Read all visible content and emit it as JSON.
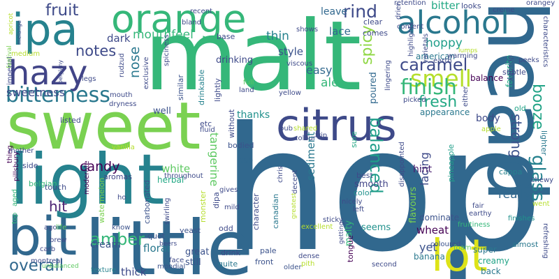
{
  "cloud": {
    "words": [
      {
        "text": "hop",
        "color": "#31688e"
      },
      {
        "text": "malt",
        "color": "#35b779"
      },
      {
        "text": "head",
        "color": "#31688e"
      },
      {
        "text": "sweet",
        "color": "#7ad151"
      },
      {
        "text": "light",
        "color": "#26828e"
      },
      {
        "text": "little",
        "color": "#31688e"
      },
      {
        "text": "citrus",
        "color": "#3e4a89"
      },
      {
        "text": "orange",
        "color": "#35b779"
      },
      {
        "text": "lot",
        "color": "#dde318"
      },
      {
        "text": "ipa",
        "color": "#26828e"
      },
      {
        "text": "bit",
        "color": "#31688e"
      },
      {
        "text": "hazy",
        "color": "#414487"
      },
      {
        "text": "alcohol",
        "color": "#2a788e"
      },
      {
        "text": "bitterness",
        "color": "#2a788e"
      },
      {
        "text": "smell",
        "color": "#b5de2b"
      },
      {
        "text": "finish",
        "color": "#35b779"
      },
      {
        "text": "amber",
        "color": "#35b779"
      },
      {
        "text": "glass",
        "color": "#26828e"
      },
      {
        "text": "caramel",
        "color": "#3e4a89"
      },
      {
        "text": "rind",
        "color": "#3e4a89"
      },
      {
        "text": "balanced",
        "color": "#1f9e89"
      },
      {
        "text": "booze",
        "color": "#20a386"
      },
      {
        "text": "fresh",
        "color": "#22a884"
      },
      {
        "text": "spicy",
        "color": "#8fd744"
      },
      {
        "text": "strong",
        "color": "#3b528b"
      },
      {
        "text": "overall",
        "color": "#31688e"
      },
      {
        "text": "fruit",
        "color": "#3e4a89"
      },
      {
        "text": "notes",
        "color": "#3e4a89"
      },
      {
        "text": "candy",
        "color": "#440154"
      },
      {
        "text": "hit",
        "color": "#481f70"
      },
      {
        "text": "nose",
        "color": "#2a788e"
      },
      {
        "text": "sweetness",
        "color": "#3e4a89"
      },
      {
        "text": "mouthfeel",
        "color": "#35b779"
      },
      {
        "text": "thin",
        "color": "#26828e"
      },
      {
        "text": "ale",
        "color": "#35b779"
      },
      {
        "text": "hoppy",
        "color": "#1f9e89"
      },
      {
        "text": "dark",
        "color": "#3e4a89"
      },
      {
        "text": "lace",
        "color": "#31688e"
      },
      {
        "text": "easy",
        "color": "#31688e"
      },
      {
        "text": "style",
        "color": "#3b528b"
      },
      {
        "text": "bitter",
        "color": "#22a884"
      },
      {
        "text": "leave",
        "color": "#31688e"
      },
      {
        "text": "really",
        "color": "#31688e"
      },
      {
        "text": "yet",
        "color": "#3b528b"
      },
      {
        "text": "wheat",
        "color": "#440154"
      },
      {
        "text": "thick",
        "color": "#3e4a89"
      },
      {
        "text": "floral",
        "color": "#2a788e"
      },
      {
        "text": "white",
        "color": "#5ec962"
      },
      {
        "text": "body",
        "color": "#3e4a89"
      },
      {
        "text": "lacing",
        "color": "#3e4a89"
      },
      {
        "text": "tangerine",
        "color": "#5ec962"
      },
      {
        "text": "sediment",
        "color": "#2a788e"
      },
      {
        "text": "smooth",
        "color": "#414487"
      },
      {
        "text": "hint",
        "color": "#481f70"
      },
      {
        "text": "thanks",
        "color": "#21918c"
      },
      {
        "text": "cream",
        "color": "#3b528b"
      },
      {
        "text": "great",
        "color": "#3b528b"
      },
      {
        "text": "still",
        "color": "#3b528b"
      },
      {
        "text": "well",
        "color": "#3b528b"
      },
      {
        "text": "drinking",
        "color": "#3e4a89"
      },
      {
        "text": "poured",
        "color": "#31688e"
      },
      {
        "text": "malty",
        "color": "#35b779"
      },
      {
        "text": "flavours",
        "color": "#7ad151"
      },
      {
        "text": "dominate",
        "color": "#3b528b"
      },
      {
        "text": "seems",
        "color": "#21918c"
      },
      {
        "text": "creamy",
        "color": "#20a386"
      },
      {
        "text": "super",
        "color": "#2a788e"
      },
      {
        "text": "banana",
        "color": "#2a788e"
      },
      {
        "text": "favorite",
        "color": "#22a884"
      },
      {
        "text": "balance",
        "color": "#440154"
      },
      {
        "text": "appearance",
        "color": "#2a788e"
      },
      {
        "text": "american",
        "color": "#2a788e"
      },
      {
        "text": "clear",
        "color": "#3e4a89"
      },
      {
        "text": "comes",
        "color": "#3e4a89"
      },
      {
        "text": "lighter",
        "color": "#2a788e"
      },
      {
        "text": "almost",
        "color": "#2a788e"
      },
      {
        "text": "herbal",
        "color": "#22a884"
      },
      {
        "text": "aromas",
        "color": "#414487"
      },
      {
        "text": "belgian",
        "color": "#35b779"
      },
      {
        "text": "side",
        "color": "#3e4a89"
      },
      {
        "text": "touch",
        "color": "#3e4a89"
      },
      {
        "text": "quot",
        "color": "#3b528b"
      },
      {
        "text": "yeast",
        "color": "#3b528b"
      },
      {
        "text": "odd",
        "color": "#3e4a89"
      },
      {
        "text": "drink",
        "color": "#3e4a89"
      },
      {
        "text": "pale",
        "color": "#3b528b"
      },
      {
        "text": "front",
        "color": "#3b528b"
      },
      {
        "text": "quite",
        "color": "#2a788e"
      },
      {
        "text": "best",
        "color": "#3e4a89"
      },
      {
        "text": "color",
        "color": "#21918c"
      },
      {
        "text": "tap",
        "color": "#31688e"
      },
      {
        "text": "sure",
        "color": "#22a884"
      },
      {
        "text": "bodied",
        "color": "#3b528b"
      },
      {
        "text": "drinkable",
        "color": "#26828e"
      },
      {
        "text": "carbonated",
        "color": "#3b528b"
      },
      {
        "text": "watermelon",
        "color": "#7ad151"
      },
      {
        "text": "monster",
        "color": "#b5de2b"
      },
      {
        "text": "dipa",
        "color": "#3e4a89"
      },
      {
        "text": "canadian",
        "color": "#2a788e"
      },
      {
        "text": "cappa",
        "color": "#26828e"
      },
      {
        "text": "pineapple",
        "color": "#1f9e89"
      },
      {
        "text": "tongue",
        "color": "#440154"
      },
      {
        "text": "character",
        "color": "#3e4a89"
      },
      {
        "text": "base",
        "color": "#3e4a89"
      },
      {
        "text": "lightly",
        "color": "#3e4a89"
      },
      {
        "text": "similar",
        "color": "#3b528b"
      },
      {
        "text": "listed",
        "color": "#3e4a89"
      },
      {
        "text": "etc",
        "color": "#3e4a89"
      },
      {
        "text": "without",
        "color": "#3e4a89"
      },
      {
        "text": "old",
        "color": "#20a386"
      },
      {
        "text": "top",
        "color": "#35b779"
      },
      {
        "text": "imperial",
        "color": "#3e4a89"
      },
      {
        "text": "medium",
        "color": "#b5de2b"
      },
      {
        "text": "thing",
        "color": "#440154"
      },
      {
        "text": "aged",
        "color": "#35b779"
      },
      {
        "text": "chewy",
        "color": "#3e4a89"
      },
      {
        "text": "fair",
        "color": "#3e4a89"
      },
      {
        "text": "earthy",
        "color": "#3e4a89"
      },
      {
        "text": "finishes",
        "color": "#21918c"
      },
      {
        "text": "went",
        "color": "#b5de2b"
      },
      {
        "text": "refreshing",
        "color": "#3e4a89"
      },
      {
        "text": "fruitiness",
        "color": "#35b779"
      },
      {
        "text": "foam",
        "color": "#5ec962"
      },
      {
        "text": "back",
        "color": "#2a788e"
      },
      {
        "text": "coloured",
        "color": "#3b528b"
      },
      {
        "text": "second",
        "color": "#3e4a89"
      },
      {
        "text": "dense",
        "color": "#3e4a89"
      },
      {
        "text": "pith",
        "color": "#b5de2b"
      },
      {
        "text": "older",
        "color": "#3b528b"
      },
      {
        "text": "mondial",
        "color": "#3b528b"
      },
      {
        "text": "face",
        "color": "#3e4a89"
      },
      {
        "text": "texture",
        "color": "#26828e"
      },
      {
        "text": "montreal",
        "color": "#3e4a89"
      },
      {
        "text": "carb",
        "color": "#3e4a89"
      },
      {
        "text": "ago",
        "color": "#3e4a89"
      },
      {
        "text": "life",
        "color": "#5ec962"
      },
      {
        "text": "brew",
        "color": "#3e4a89"
      },
      {
        "text": "pillsbury",
        "color": "#440154"
      },
      {
        "text": "mother",
        "color": "#3e4a89"
      },
      {
        "text": "vanilla",
        "color": "#b5de2b"
      },
      {
        "text": "moderate",
        "color": "#440154"
      },
      {
        "text": "know",
        "color": "#3b528b"
      },
      {
        "text": "ho",
        "color": "#3e4a89"
      },
      {
        "text": "gives",
        "color": "#3e4a89"
      },
      {
        "text": "mild",
        "color": "#3e4a89"
      },
      {
        "text": "swirling",
        "color": "#3e4a89"
      },
      {
        "text": "throughout",
        "color": "#3e4a89"
      },
      {
        "text": "fluid",
        "color": "#3e4a89"
      },
      {
        "text": "pub",
        "color": "#3e4a89"
      },
      {
        "text": "land",
        "color": "#3e4a89"
      },
      {
        "text": "yellow",
        "color": "#3e4a89"
      },
      {
        "text": "full",
        "color": "#5ec962"
      },
      {
        "text": "viscous",
        "color": "#3e4a89"
      },
      {
        "text": "spiciness",
        "color": "#3e4a89"
      },
      {
        "text": "exclusive",
        "color": "#3e4a89"
      },
      {
        "text": "dryness",
        "color": "#3e4a89"
      },
      {
        "text": "mouth",
        "color": "#3e4a89"
      },
      {
        "text": "rudzud",
        "color": "#3e4a89"
      },
      {
        "text": "legs",
        "color": "#3e4a89"
      },
      {
        "text": "belgiany",
        "color": "#3e4a89"
      },
      {
        "text": "festival",
        "color": "#7ad151"
      },
      {
        "text": "apricot",
        "color": "#b5de2b"
      },
      {
        "text": "melange",
        "color": "#3e4a89"
      },
      {
        "text": "bland",
        "color": "#3e4a89"
      },
      {
        "text": "recent",
        "color": "#3e4a89"
      },
      {
        "text": "shows",
        "color": "#3e4a89"
      },
      {
        "text": "drier",
        "color": "#3e4a89"
      },
      {
        "text": "retention",
        "color": "#3e4a89"
      },
      {
        "text": "looks",
        "color": "#3e4a89"
      },
      {
        "text": "creme",
        "color": "#3e4a89"
      },
      {
        "text": "orangey",
        "color": "#3e4a89"
      },
      {
        "text": "subtle",
        "color": "#3e4a89"
      },
      {
        "text": "characteristics",
        "color": "#3e4a89"
      },
      {
        "text": "content",
        "color": "#3e4a89"
      },
      {
        "text": "highlights",
        "color": "#3e4a89"
      },
      {
        "text": "earth",
        "color": "#3e4a89"
      },
      {
        "text": "warming",
        "color": "#3e4a89"
      },
      {
        "text": "lumps",
        "color": "#b5de2b"
      },
      {
        "text": "doughy",
        "color": "#3e4a89"
      },
      {
        "text": "peeks",
        "color": "#3e4a89"
      },
      {
        "text": "either",
        "color": "#3e4a89"
      },
      {
        "text": "apple",
        "color": "#b5de2b"
      },
      {
        "text": "varietals",
        "color": "#3e4a89"
      },
      {
        "text": "lingering",
        "color": "#3e4a89"
      },
      {
        "text": "picked",
        "color": "#3e4a89"
      },
      {
        "text": "trip",
        "color": "#3e4a89"
      },
      {
        "text": "shared",
        "color": "#b5de2b"
      },
      {
        "text": "colour",
        "color": "#3e4a89"
      },
      {
        "text": "disappointed",
        "color": "#3e4a89"
      },
      {
        "text": "nicely",
        "color": "#3e4a89"
      },
      {
        "text": "chris",
        "color": "#3e4a89"
      },
      {
        "text": "decent",
        "color": "#3e4a89"
      },
      {
        "text": "left",
        "color": "#3e4a89"
      },
      {
        "text": "sticky",
        "color": "#3e4a89"
      },
      {
        "text": "excellent",
        "color": "#b5de2b"
      },
      {
        "text": "greatest",
        "color": "#b5de2b"
      },
      {
        "text": "beers",
        "color": "#3e4a89"
      },
      {
        "text": "getting",
        "color": "#3e4a89"
      },
      {
        "text": "unbalanced",
        "color": "#5ec962"
      }
    ]
  }
}
